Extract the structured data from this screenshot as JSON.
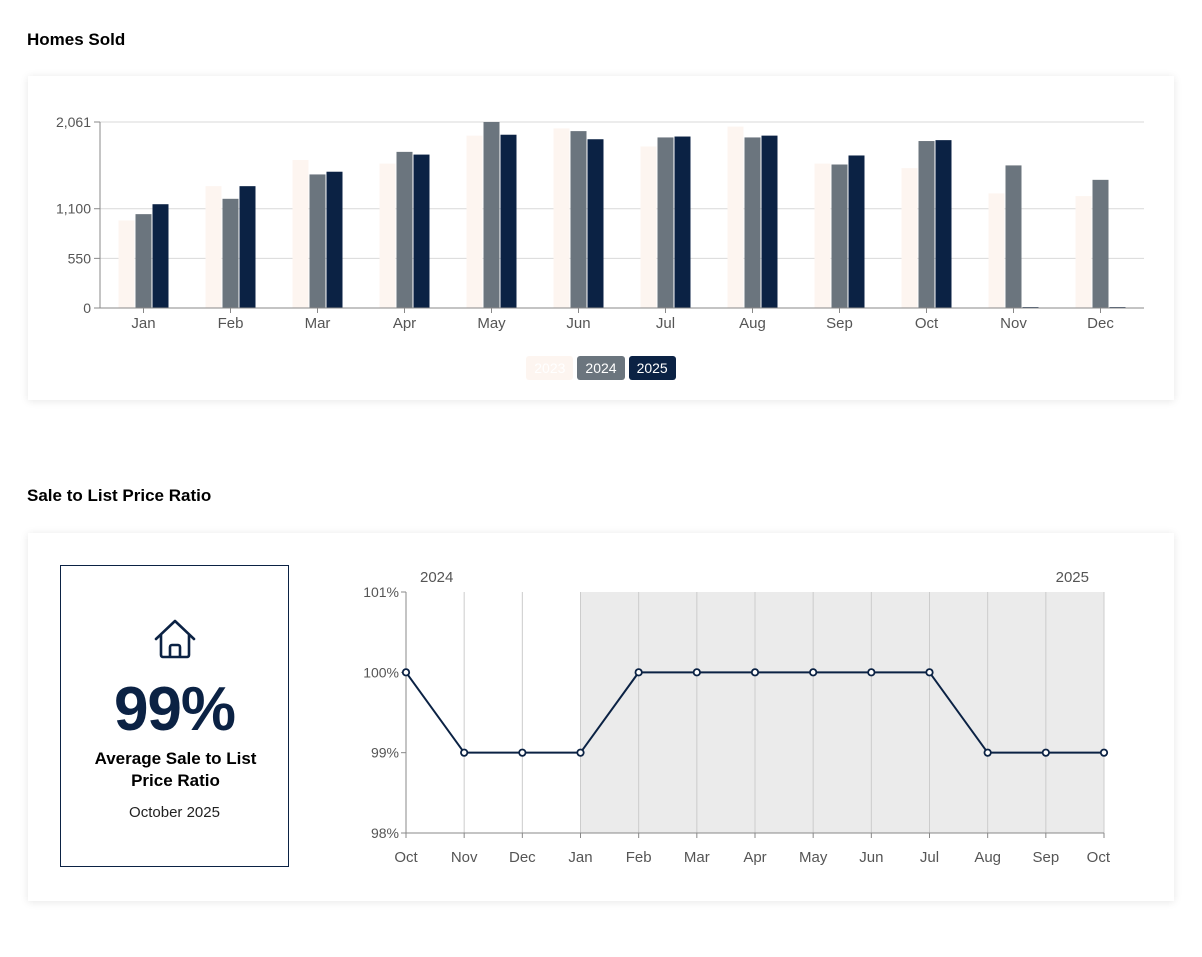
{
  "sections": {
    "homes_sold_title": "Homes Sold",
    "ratio_title": "Sale to List Price Ratio"
  },
  "stat": {
    "value": "99%",
    "label": "Average Sale to List Price Ratio",
    "date": "October 2025",
    "icon": "house-icon"
  },
  "colors": {
    "s2023": "#fdf5f0",
    "s2024": "#6b757e",
    "s2025": "#0b2244",
    "grid": "#d9d9d9",
    "shade": "#ebebeb"
  },
  "chart_data": [
    {
      "type": "bar",
      "categories": [
        "Jan",
        "Feb",
        "Mar",
        "Apr",
        "May",
        "Jun",
        "Jul",
        "Aug",
        "Sep",
        "Oct",
        "Nov",
        "Dec"
      ],
      "series": [
        {
          "name": "2023",
          "values": [
            970,
            1350,
            1640,
            1600,
            1910,
            1990,
            1790,
            2010,
            1600,
            1550,
            1270,
            1240
          ]
        },
        {
          "name": "2024",
          "values": [
            1040,
            1210,
            1480,
            1730,
            2061,
            1960,
            1890,
            1890,
            1590,
            1850,
            1580,
            1420
          ]
        },
        {
          "name": "2025",
          "values": [
            1150,
            1350,
            1510,
            1700,
            1920,
            1870,
            1900,
            1910,
            1690,
            1860,
            10,
            10
          ]
        }
      ],
      "yticks": [
        0,
        550,
        1100,
        2061
      ],
      "ylim": [
        0,
        2061
      ],
      "legend_position": "bottom",
      "grid": true
    },
    {
      "type": "line",
      "x": [
        "Oct",
        "Nov",
        "Dec",
        "Jan",
        "Feb",
        "Mar",
        "Apr",
        "May",
        "Jun",
        "Jul",
        "Aug",
        "Sep",
        "Oct"
      ],
      "year_labels": [
        "2024",
        "2025"
      ],
      "values": [
        100,
        99,
        99,
        99,
        100,
        100,
        100,
        100,
        100,
        100,
        99,
        99,
        99
      ],
      "yticks": [
        "98%",
        "99%",
        "100%",
        "101%"
      ],
      "ylim": [
        98,
        101
      ],
      "shaded_from_index": 3,
      "grid": true
    }
  ]
}
